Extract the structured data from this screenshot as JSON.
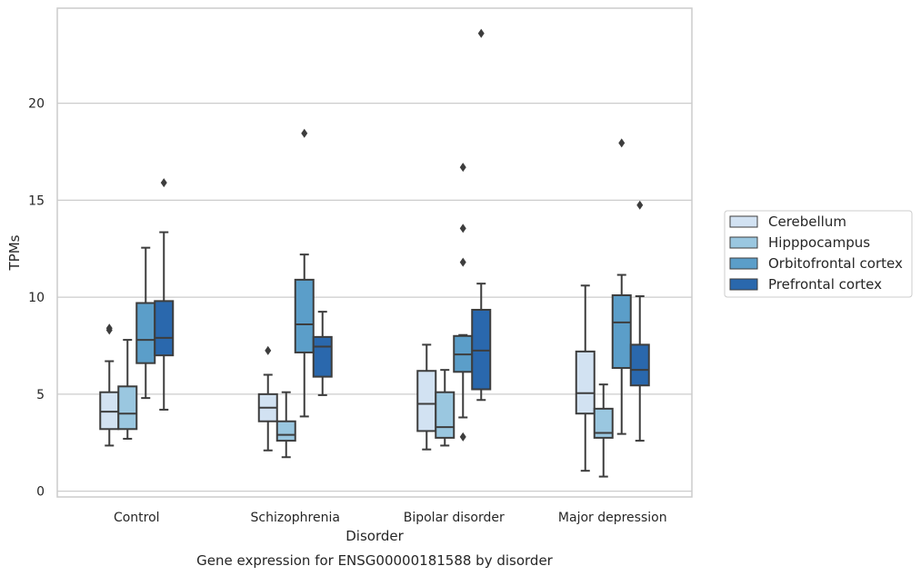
{
  "chart_data": {
    "type": "box",
    "title": "Gene expression for ENSG00000181588 by disorder",
    "xlabel": "Disorder",
    "ylabel": "TPMs",
    "ylim": [
      -0.3,
      24.9
    ],
    "yticks": [
      0,
      5,
      10,
      15,
      20
    ],
    "grid": "horizontal",
    "legend_position": "right",
    "categories": [
      "Control",
      "Schizophrenia",
      "Bipolar disorder",
      "Major depression"
    ],
    "series": [
      {
        "name": "Cerebellum",
        "color": "#d2e2f2",
        "boxes": [
          {
            "whisker_low": 2.35,
            "q1": 3.2,
            "median": 4.1,
            "q3": 5.1,
            "whisker_high": 6.7,
            "outliers": [
              8.3,
              8.4
            ]
          },
          {
            "whisker_low": 2.1,
            "q1": 3.6,
            "median": 4.3,
            "q3": 5.0,
            "whisker_high": 6.0,
            "outliers": [
              7.25
            ]
          },
          {
            "whisker_low": 2.15,
            "q1": 3.1,
            "median": 4.5,
            "q3": 6.2,
            "whisker_high": 7.55,
            "outliers": []
          },
          {
            "whisker_low": 1.05,
            "q1": 4.0,
            "median": 5.05,
            "q3": 7.2,
            "whisker_high": 10.6,
            "outliers": []
          }
        ]
      },
      {
        "name": "Hipppocampus",
        "color": "#9ac7e0",
        "boxes": [
          {
            "whisker_low": 2.7,
            "q1": 3.2,
            "median": 4.0,
            "q3": 5.4,
            "whisker_high": 7.8,
            "outliers": []
          },
          {
            "whisker_low": 1.75,
            "q1": 2.6,
            "median": 2.9,
            "q3": 3.6,
            "whisker_high": 5.1,
            "outliers": []
          },
          {
            "whisker_low": 2.35,
            "q1": 2.75,
            "median": 3.3,
            "q3": 5.1,
            "whisker_high": 6.25,
            "outliers": []
          },
          {
            "whisker_low": 0.75,
            "q1": 2.75,
            "median": 3.0,
            "q3": 4.25,
            "whisker_high": 5.5,
            "outliers": []
          }
        ]
      },
      {
        "name": "Orbitofrontal cortex",
        "color": "#5b9ec9",
        "boxes": [
          {
            "whisker_low": 4.8,
            "q1": 6.6,
            "median": 7.8,
            "q3": 9.7,
            "whisker_high": 12.55,
            "outliers": []
          },
          {
            "whisker_low": 3.85,
            "q1": 7.15,
            "median": 8.6,
            "q3": 10.9,
            "whisker_high": 12.2,
            "outliers": [
              18.45
            ]
          },
          {
            "whisker_low": 3.8,
            "q1": 6.15,
            "median": 7.05,
            "q3": 8.0,
            "whisker_high": 8.05,
            "outliers": [
              2.8,
              11.8,
              13.55,
              16.7
            ]
          },
          {
            "whisker_low": 2.95,
            "q1": 6.35,
            "median": 8.7,
            "q3": 10.1,
            "whisker_high": 11.15,
            "outliers": [
              17.95
            ]
          }
        ]
      },
      {
        "name": "Prefrontal cortex",
        "color": "#2a68ad",
        "boxes": [
          {
            "whisker_low": 4.2,
            "q1": 7.0,
            "median": 7.9,
            "q3": 9.8,
            "whisker_high": 13.35,
            "outliers": [
              15.9
            ]
          },
          {
            "whisker_low": 4.95,
            "q1": 5.9,
            "median": 7.45,
            "q3": 7.95,
            "whisker_high": 9.25,
            "outliers": []
          },
          {
            "whisker_low": 4.7,
            "q1": 5.25,
            "median": 7.25,
            "q3": 9.35,
            "whisker_high": 10.7,
            "outliers": [
              23.6
            ]
          },
          {
            "whisker_low": 2.6,
            "q1": 5.45,
            "median": 6.25,
            "q3": 7.55,
            "whisker_high": 10.05,
            "outliers": [
              14.75
            ]
          }
        ]
      }
    ]
  }
}
